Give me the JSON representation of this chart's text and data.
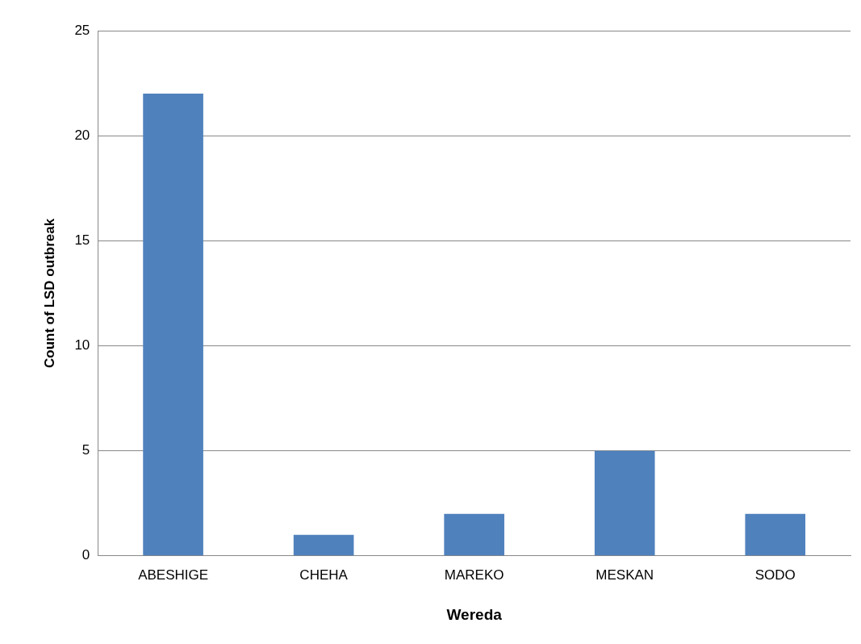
{
  "chart_data": {
    "type": "bar",
    "xlabel": "Wereda",
    "ylabel": "Count of LSD outbreak",
    "categories": [
      "ABESHIGE",
      "CHEHA",
      "MAREKO",
      "MESKAN",
      "SODO"
    ],
    "values": [
      22,
      1,
      2,
      5,
      2
    ],
    "color": "#4f81bd",
    "ylim": [
      0,
      25
    ],
    "yticks": [
      0,
      5,
      10,
      15,
      20,
      25
    ],
    "grid": "y",
    "legend": false
  }
}
